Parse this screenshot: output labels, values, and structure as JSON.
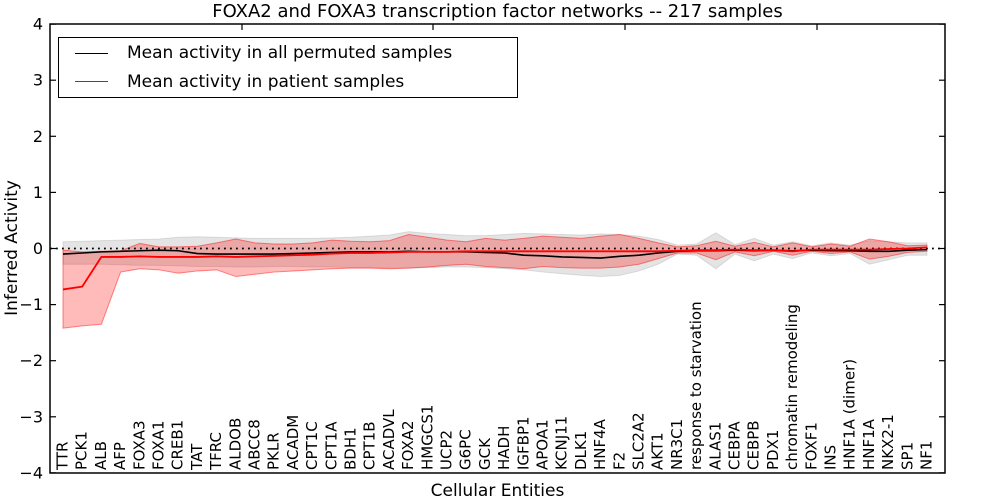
{
  "colors": {
    "permuted_line": "#000000",
    "patient_line": "#ff0000",
    "permuted_band": "rgba(105,105,105,0.18)",
    "patient_band": "rgba(255,0,0,0.27)",
    "baseline": "#000000",
    "background": "#ffffff"
  },
  "chart_data": {
    "type": "line",
    "title": "FOXA2 and FOXA3 transcription factor networks -- 217 samples",
    "xlabel": "Cellular Entities",
    "ylabel": "Inferred Activity",
    "ylim": [
      -4,
      4
    ],
    "yticks": [
      4,
      3,
      2,
      1,
      0,
      -1,
      -2,
      -3,
      -4
    ],
    "ytick_labels": [
      "4",
      "3",
      "2",
      "1",
      "0",
      "−1",
      "−2",
      "−3",
      "−4"
    ],
    "baseline": {
      "value": 0,
      "style": "dotted"
    },
    "legend_position": "upper left",
    "categories": [
      "TTR",
      "PCK1",
      "ALB",
      "AFP",
      "FOXA3",
      "FOXA1",
      "CREB1",
      "TAT",
      "TFRC",
      "ALDOB",
      "ABCC8",
      "PKLR",
      "ACADM",
      "CPT1C",
      "CPT1A",
      "BDH1",
      "CPT1B",
      "ACADVL",
      "FOXA2",
      "HMGCS1",
      "UCP2",
      "G6PC",
      "GCK",
      "HADH",
      "IGFBP1",
      "APOA1",
      "KCNJ11",
      "DLK1",
      "HNF4A",
      "F2",
      "SLC2A2",
      "AKT1",
      "NR3C1",
      "response to starvation",
      "ALAS1",
      "CEBPA",
      "CEBPB",
      "PDX1",
      "chromatin remodeling",
      "FOXF1",
      "INS",
      "HNF1A (dimer)",
      "HNF1A",
      "NKX2-1",
      "SP1",
      "NF1"
    ],
    "series": [
      {
        "name": "Mean activity in all permuted samples",
        "color": "#000000",
        "values": [
          -0.1,
          -0.08,
          -0.06,
          -0.05,
          -0.04,
          -0.03,
          -0.04,
          -0.09,
          -0.1,
          -0.1,
          -0.1,
          -0.1,
          -0.09,
          -0.08,
          -0.07,
          -0.06,
          -0.06,
          -0.06,
          -0.05,
          -0.06,
          -0.06,
          -0.06,
          -0.07,
          -0.08,
          -0.12,
          -0.13,
          -0.15,
          -0.16,
          -0.17,
          -0.14,
          -0.12,
          -0.08,
          -0.05,
          -0.04,
          -0.04,
          -0.03,
          -0.04,
          -0.03,
          -0.04,
          -0.03,
          -0.04,
          -0.04,
          -0.05,
          -0.05,
          -0.03,
          -0.02
        ],
        "band_upper": [
          0.12,
          0.13,
          0.14,
          0.15,
          0.16,
          0.17,
          0.2,
          0.21,
          0.2,
          0.19,
          0.18,
          0.18,
          0.18,
          0.18,
          0.19,
          0.2,
          0.22,
          0.24,
          0.3,
          0.27,
          0.25,
          0.23,
          0.23,
          0.25,
          0.27,
          0.26,
          0.25,
          0.24,
          0.26,
          0.25,
          0.22,
          0.16,
          0.06,
          0.08,
          0.28,
          0.07,
          0.18,
          0.06,
          0.12,
          0.05,
          0.1,
          0.06,
          0.14,
          0.12,
          0.1,
          0.1
        ],
        "band_lower": [
          -0.28,
          -0.28,
          -0.28,
          -0.29,
          -0.3,
          -0.3,
          -0.31,
          -0.32,
          -0.32,
          -0.33,
          -0.33,
          -0.32,
          -0.32,
          -0.33,
          -0.33,
          -0.34,
          -0.34,
          -0.35,
          -0.35,
          -0.34,
          -0.33,
          -0.33,
          -0.34,
          -0.36,
          -0.38,
          -0.42,
          -0.45,
          -0.48,
          -0.5,
          -0.48,
          -0.4,
          -0.28,
          -0.1,
          -0.12,
          -0.36,
          -0.1,
          -0.22,
          -0.1,
          -0.18,
          -0.08,
          -0.13,
          -0.09,
          -0.28,
          -0.2,
          -0.12,
          -0.12
        ]
      },
      {
        "name": "Mean activity in patient samples",
        "color": "#ff0000",
        "values": [
          -0.73,
          -0.68,
          -0.15,
          -0.15,
          -0.14,
          -0.15,
          -0.15,
          -0.15,
          -0.14,
          -0.15,
          -0.14,
          -0.13,
          -0.12,
          -0.11,
          -0.09,
          -0.08,
          -0.08,
          -0.07,
          -0.06,
          -0.06,
          -0.06,
          -0.05,
          -0.05,
          -0.05,
          -0.05,
          -0.05,
          -0.05,
          -0.05,
          -0.05,
          -0.05,
          -0.05,
          -0.05,
          -0.04,
          -0.03,
          -0.03,
          -0.02,
          -0.03,
          -0.03,
          -0.05,
          -0.02,
          -0.02,
          -0.02,
          -0.02,
          -0.01,
          0.0,
          0.02
        ],
        "band_upper": [
          -0.03,
          -0.06,
          -0.05,
          -0.04,
          0.09,
          0.03,
          0.03,
          0.04,
          0.1,
          0.17,
          0.1,
          0.08,
          0.08,
          0.1,
          0.15,
          0.13,
          0.12,
          0.14,
          0.25,
          0.2,
          0.15,
          0.12,
          0.18,
          0.15,
          0.18,
          0.22,
          0.2,
          0.18,
          0.22,
          0.25,
          0.18,
          0.1,
          0.03,
          0.05,
          0.13,
          0.04,
          0.11,
          0.03,
          0.1,
          0.03,
          0.08,
          0.04,
          0.17,
          0.12,
          0.05,
          0.06
        ],
        "band_lower": [
          -1.42,
          -1.38,
          -1.35,
          -0.42,
          -0.36,
          -0.38,
          -0.44,
          -0.4,
          -0.38,
          -0.5,
          -0.46,
          -0.42,
          -0.4,
          -0.38,
          -0.36,
          -0.35,
          -0.35,
          -0.36,
          -0.35,
          -0.33,
          -0.3,
          -0.28,
          -0.32,
          -0.34,
          -0.36,
          -0.32,
          -0.34,
          -0.35,
          -0.35,
          -0.33,
          -0.28,
          -0.18,
          -0.08,
          -0.08,
          -0.2,
          -0.06,
          -0.13,
          -0.05,
          -0.12,
          -0.05,
          -0.09,
          -0.06,
          -0.19,
          -0.14,
          -0.07,
          -0.05
        ]
      }
    ]
  }
}
